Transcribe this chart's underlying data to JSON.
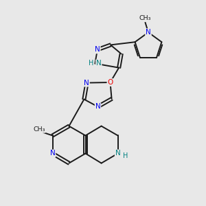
{
  "bg_color": "#e8e8e8",
  "bond_color": "#1a1a1a",
  "atom_colors": {
    "N_blue": "#0000ee",
    "NH_teal": "#008080",
    "O_red": "#ee0000",
    "C": "#1a1a1a"
  },
  "figsize": [
    3.0,
    3.0
  ],
  "dpi": 100,
  "xlim": [
    0,
    10
  ],
  "ylim": [
    0,
    10
  ]
}
